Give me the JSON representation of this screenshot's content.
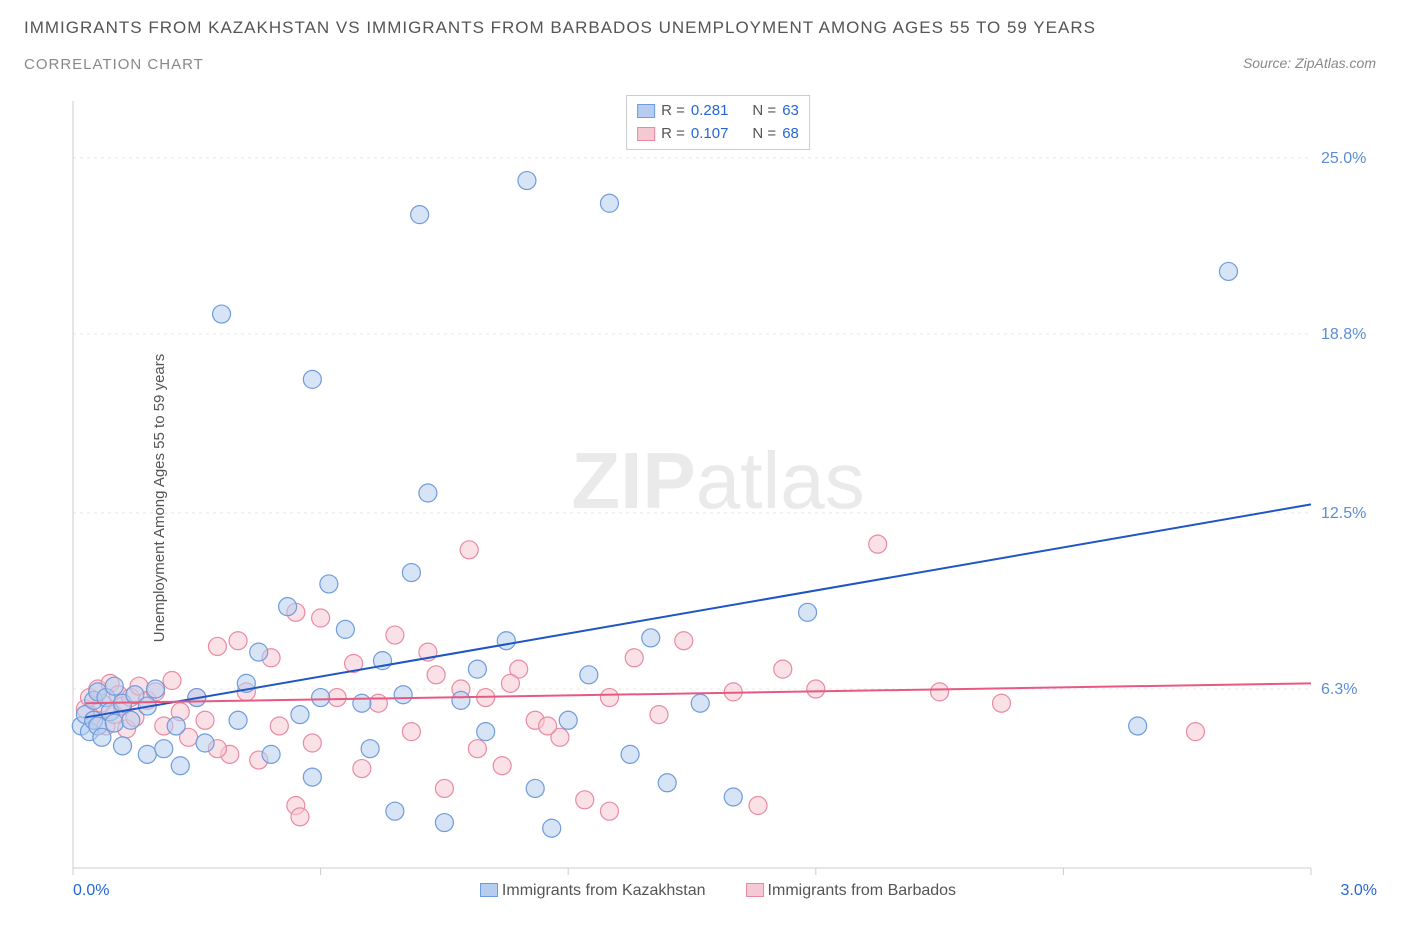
{
  "title": {
    "line1": "IMMIGRANTS FROM KAZAKHSTAN VS IMMIGRANTS FROM BARBADOS UNEMPLOYMENT AMONG AGES 55 TO 59 YEARS",
    "line2": "CORRELATION CHART"
  },
  "source": "Source: ZipAtlas.com",
  "watermark": {
    "bold": "ZIP",
    "light": "atlas"
  },
  "chart": {
    "type": "scatter",
    "background_color": "#ffffff",
    "grid_color": "#e8e8e8",
    "axis_color": "#cccccc",
    "y_axis_label": "Unemployment Among Ages 55 to 59 years",
    "xlim": [
      0.0,
      3.0
    ],
    "ylim": [
      0.0,
      27.0
    ],
    "x_tick_positions": [
      0.0,
      0.6,
      1.2,
      1.8,
      2.4,
      3.0
    ],
    "x_tick_labels_visible": [
      "0.0%",
      "",
      "",
      "",
      "",
      "3.0%"
    ],
    "y_tick_positions": [
      6.3,
      12.5,
      18.8,
      25.0
    ],
    "y_tick_labels": [
      "6.3%",
      "12.5%",
      "18.8%",
      "25.0%"
    ],
    "y_label_color": "#5b8dd6",
    "marker_radius": 9,
    "marker_opacity": 0.55,
    "marker_stroke_width": 1.2,
    "trend_line_width": 2,
    "series": [
      {
        "name": "Immigrants from Kazakhstan",
        "fill_color": "#b7cdef",
        "stroke_color": "#6f9cdc",
        "line_color": "#1f55c4",
        "R": "0.281",
        "N": "63",
        "trend": {
          "x1": 0.03,
          "y1": 5.3,
          "x2": 3.0,
          "y2": 12.8
        },
        "points": [
          [
            0.02,
            5.0
          ],
          [
            0.03,
            5.4
          ],
          [
            0.04,
            4.8
          ],
          [
            0.05,
            5.9
          ],
          [
            0.05,
            5.2
          ],
          [
            0.06,
            6.2
          ],
          [
            0.06,
            5.0
          ],
          [
            0.07,
            4.6
          ],
          [
            0.08,
            6.0
          ],
          [
            0.09,
            5.5
          ],
          [
            0.1,
            5.1
          ],
          [
            0.1,
            6.4
          ],
          [
            0.12,
            4.3
          ],
          [
            0.12,
            5.8
          ],
          [
            0.14,
            5.2
          ],
          [
            0.15,
            6.1
          ],
          [
            0.18,
            4.0
          ],
          [
            0.18,
            5.7
          ],
          [
            0.2,
            6.3
          ],
          [
            0.22,
            4.2
          ],
          [
            0.25,
            5.0
          ],
          [
            0.26,
            3.6
          ],
          [
            0.3,
            6.0
          ],
          [
            0.32,
            4.4
          ],
          [
            0.36,
            19.5
          ],
          [
            0.4,
            5.2
          ],
          [
            0.42,
            6.5
          ],
          [
            0.45,
            7.6
          ],
          [
            0.48,
            4.0
          ],
          [
            0.52,
            9.2
          ],
          [
            0.55,
            5.4
          ],
          [
            0.58,
            3.2
          ],
          [
            0.58,
            17.2
          ],
          [
            0.62,
            10.0
          ],
          [
            0.66,
            8.4
          ],
          [
            0.7,
            5.8
          ],
          [
            0.72,
            4.2
          ],
          [
            0.75,
            7.3
          ],
          [
            0.78,
            2.0
          ],
          [
            0.8,
            6.1
          ],
          [
            0.82,
            10.4
          ],
          [
            0.84,
            23.0
          ],
          [
            0.86,
            13.2
          ],
          [
            0.9,
            1.6
          ],
          [
            0.94,
            5.9
          ],
          [
            0.98,
            7.0
          ],
          [
            1.0,
            4.8
          ],
          [
            1.05,
            8.0
          ],
          [
            1.1,
            24.2
          ],
          [
            1.12,
            2.8
          ],
          [
            1.16,
            1.4
          ],
          [
            1.2,
            5.2
          ],
          [
            1.25,
            6.8
          ],
          [
            1.3,
            23.4
          ],
          [
            1.35,
            4.0
          ],
          [
            1.4,
            8.1
          ],
          [
            1.44,
            3.0
          ],
          [
            1.52,
            5.8
          ],
          [
            1.6,
            2.5
          ],
          [
            1.78,
            9.0
          ],
          [
            2.58,
            5.0
          ],
          [
            2.8,
            21.0
          ],
          [
            0.6,
            6.0
          ]
        ]
      },
      {
        "name": "Immigrants from Barbados",
        "fill_color": "#f5c9d3",
        "stroke_color": "#e98ba1",
        "line_color": "#e65a82",
        "R": "0.107",
        "N": "68",
        "trend": {
          "x1": 0.03,
          "y1": 5.8,
          "x2": 3.0,
          "y2": 6.5
        },
        "points": [
          [
            0.03,
            5.6
          ],
          [
            0.04,
            6.0
          ],
          [
            0.05,
            5.2
          ],
          [
            0.06,
            6.3
          ],
          [
            0.07,
            5.8
          ],
          [
            0.08,
            5.0
          ],
          [
            0.09,
            6.5
          ],
          [
            0.1,
            5.4
          ],
          [
            0.11,
            6.1
          ],
          [
            0.12,
            5.7
          ],
          [
            0.13,
            4.9
          ],
          [
            0.14,
            6.0
          ],
          [
            0.15,
            5.3
          ],
          [
            0.16,
            6.4
          ],
          [
            0.18,
            5.9
          ],
          [
            0.2,
            6.2
          ],
          [
            0.22,
            5.0
          ],
          [
            0.24,
            6.6
          ],
          [
            0.26,
            5.5
          ],
          [
            0.28,
            4.6
          ],
          [
            0.3,
            6.0
          ],
          [
            0.32,
            5.2
          ],
          [
            0.35,
            7.8
          ],
          [
            0.38,
            4.0
          ],
          [
            0.4,
            8.0
          ],
          [
            0.42,
            6.2
          ],
          [
            0.45,
            3.8
          ],
          [
            0.48,
            7.4
          ],
          [
            0.5,
            5.0
          ],
          [
            0.54,
            9.0
          ],
          [
            0.54,
            2.2
          ],
          [
            0.58,
            4.4
          ],
          [
            0.6,
            8.8
          ],
          [
            0.64,
            6.0
          ],
          [
            0.68,
            7.2
          ],
          [
            0.7,
            3.5
          ],
          [
            0.74,
            5.8
          ],
          [
            0.78,
            8.2
          ],
          [
            0.82,
            4.8
          ],
          [
            0.86,
            7.6
          ],
          [
            0.9,
            2.8
          ],
          [
            0.94,
            6.3
          ],
          [
            0.96,
            11.2
          ],
          [
            0.98,
            4.2
          ],
          [
            1.0,
            6.0
          ],
          [
            1.04,
            3.6
          ],
          [
            1.08,
            7.0
          ],
          [
            1.12,
            5.2
          ],
          [
            1.18,
            4.6
          ],
          [
            1.24,
            2.4
          ],
          [
            1.3,
            6.0
          ],
          [
            1.3,
            2.0
          ],
          [
            1.36,
            7.4
          ],
          [
            1.42,
            5.4
          ],
          [
            1.48,
            8.0
          ],
          [
            1.6,
            6.2
          ],
          [
            1.66,
            2.2
          ],
          [
            1.72,
            7.0
          ],
          [
            1.8,
            6.3
          ],
          [
            1.95,
            11.4
          ],
          [
            2.1,
            6.2
          ],
          [
            2.25,
            5.8
          ],
          [
            2.72,
            4.8
          ],
          [
            0.55,
            1.8
          ],
          [
            0.88,
            6.8
          ],
          [
            1.06,
            6.5
          ],
          [
            1.15,
            5.0
          ],
          [
            0.35,
            4.2
          ]
        ]
      }
    ],
    "legend_bottom": [
      {
        "label": "Immigrants from Kazakhstan",
        "fill": "#b7cdef",
        "stroke": "#6f9cdc"
      },
      {
        "label": "Immigrants from Barbados",
        "fill": "#f5c9d3",
        "stroke": "#e98ba1"
      }
    ],
    "legend_box_labels": {
      "R_prefix": "R = ",
      "N_prefix": "N = "
    }
  }
}
